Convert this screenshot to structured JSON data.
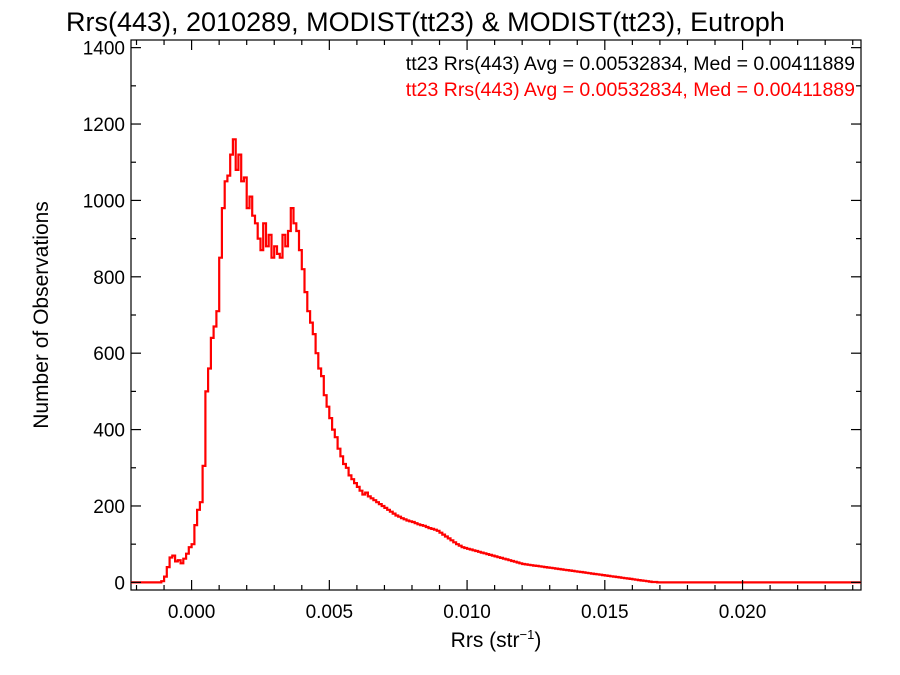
{
  "chart_data": {
    "type": "step-histogram",
    "title": "Rrs(443), 2010289, MODIST(tt23) & MODIST(tt23), Eutroph",
    "xlabel": {
      "base": "Rrs (str",
      "sup": "−1",
      "tail": ")"
    },
    "ylabel": "Number of Observations",
    "xlim": [
      -0.0022,
      0.0243
    ],
    "ylim": [
      -20,
      1420
    ],
    "x_ticks": [
      0.0,
      0.005,
      0.01,
      0.015,
      0.02
    ],
    "x_tick_labels": [
      "0.000",
      "0.005",
      "0.010",
      "0.015",
      "0.020"
    ],
    "y_ticks": [
      0,
      200,
      400,
      600,
      800,
      1000,
      1200,
      1400
    ],
    "y_tick_labels": [
      "0",
      "200",
      "400",
      "600",
      "800",
      "1000",
      "1200",
      "1400"
    ],
    "grid": false,
    "annotations": [
      {
        "text": "tt23 Rrs(443) Avg = 0.00532834, Med = 0.00411889",
        "color": "#000000"
      },
      {
        "text": "tt23 Rrs(443) Avg = 0.00532834, Med = 0.00411889",
        "color": "#ff0000"
      }
    ],
    "series": [
      {
        "name": "tt23 Rrs(443)",
        "color": "#ff0000",
        "bin_width": 0.0001,
        "bin_start": -0.0016,
        "counts": [
          0,
          0,
          0,
          0,
          0,
          3,
          15,
          40,
          65,
          70,
          55,
          58,
          50,
          62,
          75,
          92,
          100,
          150,
          190,
          210,
          305,
          500,
          560,
          640,
          670,
          710,
          850,
          980,
          1050,
          1065,
          1120,
          1160,
          1080,
          1120,
          1050,
          1060,
          980,
          1010,
          960,
          940,
          900,
          870,
          940,
          880,
          910,
          850,
          880,
          860,
          850,
          910,
          880,
          920,
          980,
          940,
          920,
          870,
          820,
          760,
          710,
          680,
          650,
          600,
          560,
          540,
          490,
          460,
          430,
          400,
          380,
          350,
          330,
          310,
          300,
          280,
          270,
          260,
          250,
          240,
          230,
          235,
          225,
          220,
          215,
          210,
          205,
          200,
          195,
          190,
          185,
          180,
          175,
          172,
          168,
          165,
          162,
          160,
          158,
          155,
          152,
          150,
          148,
          145,
          142,
          140,
          138,
          135,
          130,
          125,
          120,
          115,
          110,
          105,
          100,
          96,
          92,
          90,
          88,
          86,
          84,
          82,
          80,
          78,
          76,
          74,
          72,
          70,
          68,
          66,
          64,
          62,
          60,
          58,
          56,
          54,
          52,
          50,
          48,
          47,
          46,
          45,
          44,
          43,
          42,
          41,
          40,
          39,
          38,
          37,
          36,
          35,
          34,
          33,
          32,
          31,
          30,
          29,
          28,
          27,
          26,
          25,
          24,
          23,
          22,
          21,
          20,
          19,
          18,
          17,
          16,
          15,
          14,
          13,
          12,
          11,
          10,
          9,
          8,
          7,
          6,
          5,
          4,
          3,
          2,
          1,
          1,
          0,
          0,
          0
        ]
      }
    ]
  }
}
